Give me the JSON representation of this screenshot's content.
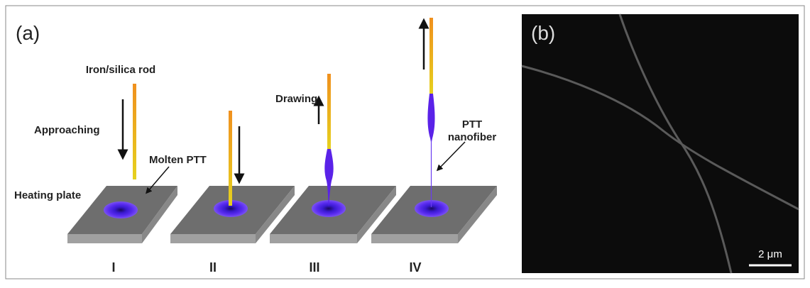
{
  "panel_a": {
    "label": "(a)",
    "rod_label": "Iron/silica rod",
    "approaching": "Approaching",
    "molten": "Molten PTT",
    "heating_plate": "Heating plate",
    "drawing": "Drawing",
    "fiber_label": [
      "PTT",
      "nanofiber"
    ],
    "steps": [
      "I",
      "II",
      "III",
      "IV"
    ]
  },
  "panel_b": {
    "label": "(b)",
    "scale_bar": "2 μm"
  }
}
